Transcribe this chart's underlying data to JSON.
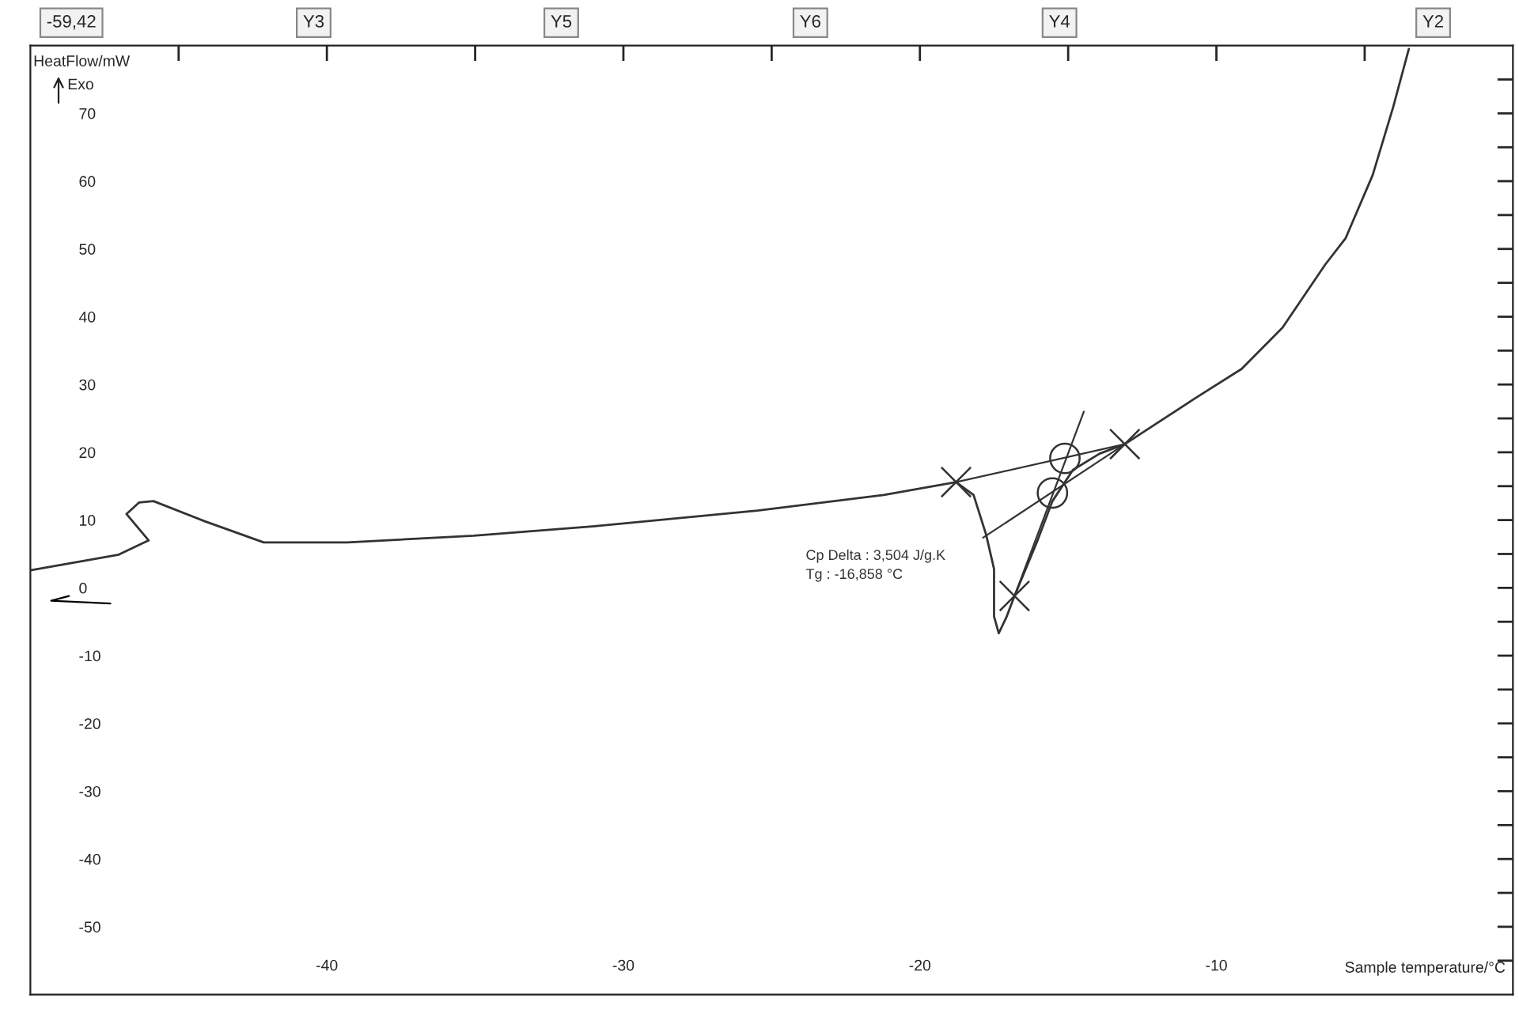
{
  "chart_data": {
    "type": "line",
    "xlabel": "Sample temperature/°C",
    "ylabel": "HeatFlow/mW",
    "xlim": [
      -50,
      0
    ],
    "ylim": [
      -60,
      80
    ],
    "xticks": [
      {
        "value": -45,
        "label": null
      },
      -40,
      {
        "value": -35,
        "label": null
      },
      -30,
      {
        "value": -25,
        "label": null
      },
      -20,
      {
        "value": -15,
        "label": null
      },
      -10,
      {
        "value": -5,
        "label": null
      }
    ],
    "yticks": [
      {
        "value": -55,
        "label": null
      },
      -50,
      {
        "value": -45,
        "label": null
      },
      -40,
      {
        "value": -35,
        "label": null
      },
      -30,
      {
        "value": -25,
        "label": null
      },
      -20,
      {
        "value": -15,
        "label": null
      },
      -10,
      {
        "value": -5,
        "label": null
      },
      0,
      {
        "value": 5,
        "label": null
      },
      10,
      {
        "value": 15,
        "label": null
      },
      20,
      {
        "value": 25,
        "label": null
      },
      30,
      {
        "value": 35,
        "label": null
      },
      40,
      {
        "value": 45,
        "label": null
      },
      50,
      {
        "value": 55,
        "label": null
      },
      60,
      {
        "value": 65,
        "label": null
      },
      70,
      {
        "value": 75,
        "label": null
      }
    ],
    "grid": false,
    "legend": false,
    "series": [
      {
        "color": "#333333",
        "x": [
          -50.0,
          -47.02,
          -46.01,
          -46.76,
          -46.33,
          -45.85,
          -44.1,
          -42.13,
          -39.31,
          -35.05,
          -30.96,
          -25.48,
          -21.22,
          -18.78,
          -18.19,
          -17.77,
          -17.5,
          -17.5,
          -17.34,
          -17.07,
          -16.81,
          -16.06,
          -15.53,
          -14.84,
          -13.94,
          -13.09,
          -10.74,
          -9.15,
          -7.77,
          -6.33,
          -5.64,
          -4.73,
          -4.04,
          -3.51
        ],
        "values": [
          2.6,
          4.9,
          7.0,
          10.9,
          12.6,
          12.8,
          9.8,
          6.7,
          6.7,
          7.7,
          9.1,
          11.4,
          13.7,
          15.6,
          13.7,
          7.9,
          2.8,
          -4.2,
          -6.7,
          -4.2,
          -1.2,
          6.7,
          12.8,
          17.4,
          19.8,
          21.2,
          27.9,
          32.3,
          38.4,
          47.7,
          51.6,
          60.9,
          70.9,
          79.5
        ]
      },
      {
        "type": "line",
        "color": "#000000",
        "x": [
          -48.7,
          -49.3,
          -47.3
        ],
        "values": [
          -1.2,
          -1.9,
          -2.3
        ]
      },
      {
        "type": "line",
        "color": "#333333",
        "x": [
          -18.78,
          -13.09
        ],
        "values": [
          15.6,
          21.2
        ]
      },
      {
        "type": "line",
        "color": "#333333",
        "x": [
          -17.87,
          -13.09
        ],
        "values": [
          7.4,
          21.2
        ]
      },
      {
        "type": "line",
        "color": "#333333",
        "x": [
          -14.47,
          -16.81
        ],
        "values": [
          26.0,
          -1.2
        ]
      },
      {
        "type": "scatter",
        "marker": "cross",
        "color": "#333333",
        "x": [
          -18.78,
          -13.09,
          -16.81
        ],
        "values": [
          15.6,
          21.2,
          -1.2
        ]
      },
      {
        "type": "scatter",
        "marker": "circle",
        "color": "#333333",
        "x": [
          -15.11,
          -15.53
        ],
        "values": [
          19.1,
          14.0
        ]
      }
    ],
    "annotations": [
      "Exo",
      "Cp Delta : 3,504 J/g.K",
      "Tg : -16,858 °C",
      "-59,42",
      "Y3",
      "Y5",
      "Y6",
      "Y4",
      "Y2"
    ]
  }
}
